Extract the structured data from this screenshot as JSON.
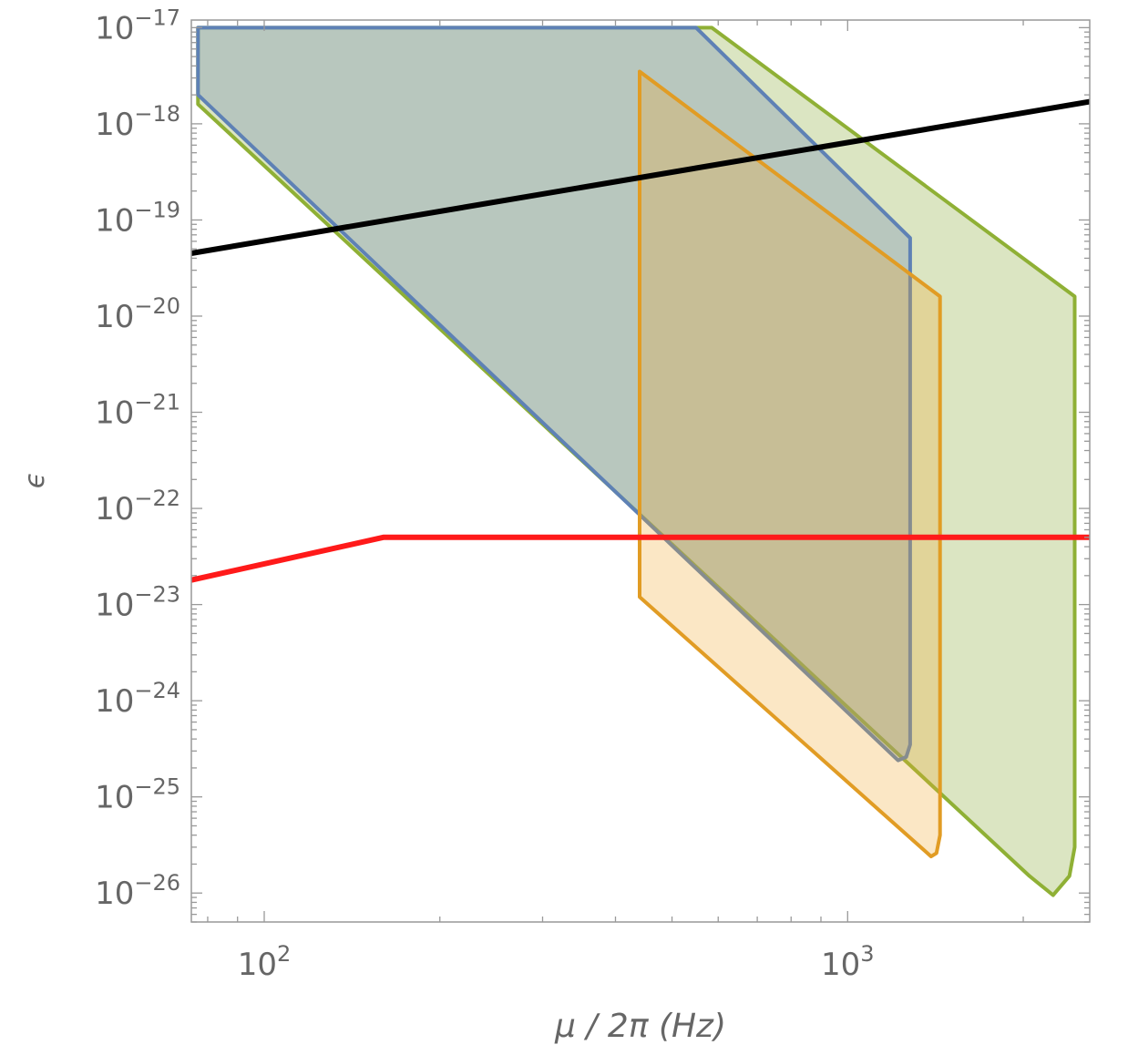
{
  "chart_data": {
    "type": "area",
    "xlabel": "μ / 2π (Hz)",
    "ylabel": "ϵ",
    "xscale": "log",
    "yscale": "log",
    "xlim": [
      75,
      2600
    ],
    "ylim": [
      5e-27,
      1.2e-17
    ],
    "grid": false,
    "legend": "none",
    "x_ticks": [
      {
        "value": 100,
        "base": "10",
        "exp": "2"
      },
      {
        "value": 1000,
        "base": "10",
        "exp": "3"
      }
    ],
    "y_ticks": [
      {
        "value": 1e-17,
        "base": "10",
        "exp": "−17"
      },
      {
        "value": 1e-18,
        "base": "10",
        "exp": "−18"
      },
      {
        "value": 1e-19,
        "base": "10",
        "exp": "−19"
      },
      {
        "value": 1e-20,
        "base": "10",
        "exp": "−20"
      },
      {
        "value": 1e-21,
        "base": "10",
        "exp": "−21"
      },
      {
        "value": 1e-22,
        "base": "10",
        "exp": "−22"
      },
      {
        "value": 1e-23,
        "base": "10",
        "exp": "−23"
      },
      {
        "value": 1e-24,
        "base": "10",
        "exp": "−24"
      },
      {
        "value": 1e-25,
        "base": "10",
        "exp": "−25"
      },
      {
        "value": 1e-26,
        "base": "10",
        "exp": "−26"
      }
    ],
    "regions": [
      {
        "color": "#8fb035",
        "fill": "#dbe5c2",
        "points": [
          [
            77,
            1e-17
          ],
          [
            585,
            1e-17
          ],
          [
            2450,
            1.6e-20
          ],
          [
            2450,
            3e-26
          ],
          [
            2400,
            1.5e-26
          ],
          [
            2250,
            9.5e-27
          ],
          [
            2050,
            1.5e-26
          ],
          [
            77,
            1.6e-18
          ]
        ]
      },
      {
        "color": "#5e81b5",
        "fill": "#6f8db5",
        "fill_opacity": 0.33,
        "points": [
          [
            77,
            1e-17
          ],
          [
            550,
            1e-17
          ],
          [
            1280,
            6.5e-20
          ],
          [
            1280,
            3.5e-25
          ],
          [
            1260,
            2.6e-25
          ],
          [
            1220,
            2.4e-25
          ],
          [
            77,
            2e-18
          ]
        ]
      },
      {
        "color": "#e19c24",
        "fill": "#f0a830",
        "fill_opacity": 0.28,
        "points": [
          [
            440,
            3.5e-18
          ],
          [
            1440,
            1.6e-20
          ],
          [
            1440,
            4e-26
          ],
          [
            1420,
            2.6e-26
          ],
          [
            1390,
            2.4e-26
          ],
          [
            440,
            1.2e-23
          ]
        ]
      }
    ],
    "lines": [
      {
        "color": "#000000",
        "points": [
          [
            75,
            4.5e-20
          ],
          [
            2600,
            1.7e-18
          ]
        ]
      },
      {
        "color": "#ff1a1a",
        "points": [
          [
            75,
            1.8e-23
          ],
          [
            160,
            5e-23
          ],
          [
            2600,
            5e-23
          ]
        ]
      }
    ]
  }
}
